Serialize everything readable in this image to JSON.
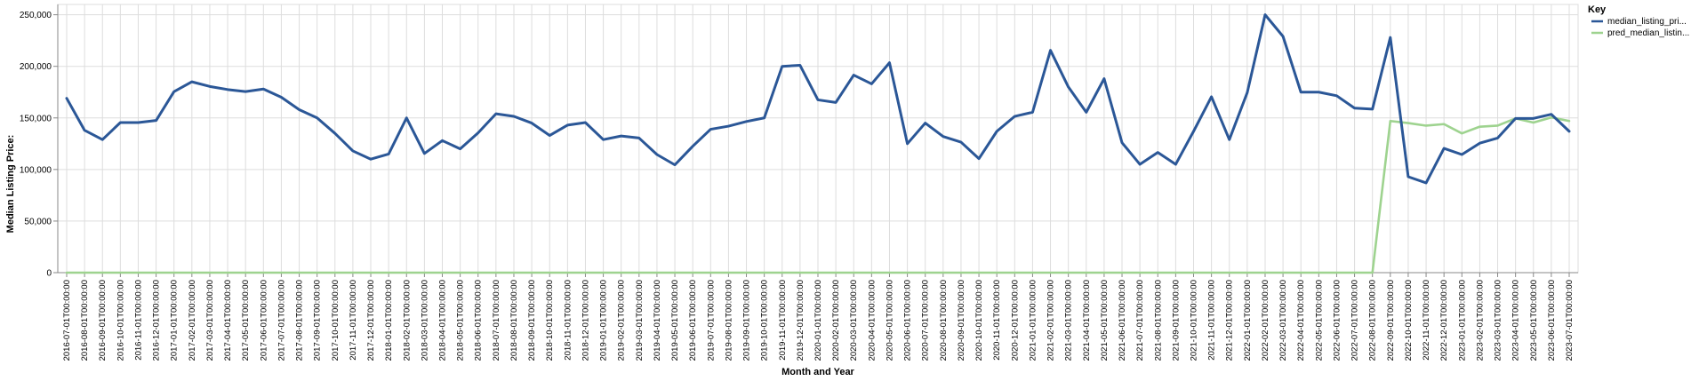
{
  "chart_data": {
    "type": "line",
    "xlabel": "Month and Year",
    "ylabel": "Median Listing Price:",
    "ylim": [
      0,
      260000
    ],
    "yticks": [
      0,
      50000,
      100000,
      150000,
      200000,
      250000
    ],
    "ytick_labels": [
      "0",
      "50,000",
      "100,000",
      "150,000",
      "200,000",
      "250,000"
    ],
    "grid": true,
    "legend": {
      "title": "Key",
      "placement": "top-right",
      "entries": [
        "median_listing_pri...",
        "pred_median_listin..."
      ]
    },
    "x": [
      "2016-07-01T00:00:00",
      "2016-08-01T00:00:00",
      "2016-09-01T00:00:00",
      "2016-10-01T00:00:00",
      "2016-11-01T00:00:00",
      "2016-12-01T00:00:00",
      "2017-01-01T00:00:00",
      "2017-02-01T00:00:00",
      "2017-03-01T00:00:00",
      "2017-04-01T00:00:00",
      "2017-05-01T00:00:00",
      "2017-06-01T00:00:00",
      "2017-07-01T00:00:00",
      "2017-08-01T00:00:00",
      "2017-09-01T00:00:00",
      "2017-10-01T00:00:00",
      "2017-11-01T00:00:00",
      "2017-12-01T00:00:00",
      "2018-01-01T00:00:00",
      "2018-02-01T00:00:00",
      "2018-03-01T00:00:00",
      "2018-04-01T00:00:00",
      "2018-05-01T00:00:00",
      "2018-06-01T00:00:00",
      "2018-07-01T00:00:00",
      "2018-08-01T00:00:00",
      "2018-09-01T00:00:00",
      "2018-10-01T00:00:00",
      "2018-11-01T00:00:00",
      "2018-12-01T00:00:00",
      "2019-01-01T00:00:00",
      "2019-02-01T00:00:00",
      "2019-03-01T00:00:00",
      "2019-04-01T00:00:00",
      "2019-05-01T00:00:00",
      "2019-06-01T00:00:00",
      "2019-07-01T00:00:00",
      "2019-08-01T00:00:00",
      "2019-09-01T00:00:00",
      "2019-10-01T00:00:00",
      "2019-11-01T00:00:00",
      "2019-12-01T00:00:00",
      "2020-01-01T00:00:00",
      "2020-02-01T00:00:00",
      "2020-03-01T00:00:00",
      "2020-04-01T00:00:00",
      "2020-05-01T00:00:00",
      "2020-06-01T00:00:00",
      "2020-07-01T00:00:00",
      "2020-08-01T00:00:00",
      "2020-09-01T00:00:00",
      "2020-10-01T00:00:00",
      "2020-11-01T00:00:00",
      "2020-12-01T00:00:00",
      "2021-01-01T00:00:00",
      "2021-02-01T00:00:00",
      "2021-03-01T00:00:00",
      "2021-04-01T00:00:00",
      "2021-05-01T00:00:00",
      "2021-06-01T00:00:00",
      "2021-07-01T00:00:00",
      "2021-08-01T00:00:00",
      "2021-09-01T00:00:00",
      "2021-10-01T00:00:00",
      "2021-11-01T00:00:00",
      "2021-12-01T00:00:00",
      "2022-01-01T00:00:00",
      "2022-02-01T00:00:00",
      "2022-03-01T00:00:00",
      "2022-04-01T00:00:00",
      "2022-05-01T00:00:00",
      "2022-06-01T00:00:00",
      "2022-07-01T00:00:00",
      "2022-08-01T00:00:00",
      "2022-09-01T00:00:00",
      "2022-10-01T00:00:00",
      "2022-11-01T00:00:00",
      "2022-12-01T00:00:00",
      "2023-01-01T00:00:00",
      "2023-02-01T00:00:00",
      "2023-03-01T00:00:00",
      "2023-04-01T00:00:00",
      "2023-05-01T00:00:00",
      "2023-06-01T00:00:00",
      "2023-07-01T00:00:00"
    ],
    "series": [
      {
        "name": "median_listing_pri...",
        "color": "#2b5797",
        "values": [
          169000,
          138000,
          129000,
          145500,
          145500,
          147500,
          175500,
          185000,
          180500,
          177500,
          175500,
          178000,
          170000,
          158000,
          150000,
          135000,
          118000,
          110000,
          115000,
          150000,
          115500,
          128000,
          120000,
          135500,
          154000,
          151500,
          145000,
          133000,
          143000,
          145500,
          129000,
          132500,
          130500,
          114500,
          104500,
          122500,
          139000,
          142000,
          146500,
          150000,
          200000,
          201000,
          167500,
          165000,
          191500,
          183000,
          203500,
          125000,
          145000,
          132000,
          126500,
          110500,
          137000,
          151500,
          155500,
          215500,
          180000,
          155500,
          188000,
          126000,
          105000,
          116500,
          105000,
          137000,
          170500,
          129000,
          174500,
          250000,
          229000,
          175000,
          175000,
          171500,
          159500,
          158500,
          228000,
          93000,
          87000,
          120500,
          114500,
          125500,
          130500,
          149500,
          149500,
          153500,
          137000
        ]
      },
      {
        "name": "pred_median_listin...",
        "color": "#9ed38f",
        "values": [
          0,
          0,
          0,
          0,
          0,
          0,
          0,
          0,
          0,
          0,
          0,
          0,
          0,
          0,
          0,
          0,
          0,
          0,
          0,
          0,
          0,
          0,
          0,
          0,
          0,
          0,
          0,
          0,
          0,
          0,
          0,
          0,
          0,
          0,
          0,
          0,
          0,
          0,
          0,
          0,
          0,
          0,
          0,
          0,
          0,
          0,
          0,
          0,
          0,
          0,
          0,
          0,
          0,
          0,
          0,
          0,
          0,
          0,
          0,
          0,
          0,
          0,
          0,
          0,
          0,
          0,
          0,
          0,
          0,
          0,
          0,
          0,
          0,
          0,
          147000,
          145000,
          142500,
          144000,
          135000,
          141500,
          142500,
          149500,
          145500,
          150500,
          147000
        ]
      }
    ]
  }
}
